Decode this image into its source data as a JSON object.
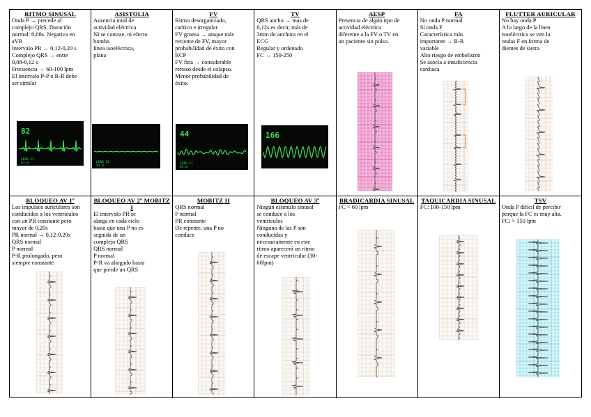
{
  "cells": [
    {
      "title": "RITMO SINUSAL",
      "lines": [
        "Onda P → precede al",
        "complejo QRS. Duración",
        "normal: 0,08s. Negativa en",
        "aVR",
        "Intervalo PR → 0,12-0,20 s",
        "Complejo QRS → entre",
        "0,08-0,12 s",
        "Frecuencia → 60-100 lpm",
        "El intervalo P-P o R-R debe",
        "ser similar"
      ],
      "monitor": {
        "rate": "82",
        "lead": "LEAD II",
        "gain": "X1.0",
        "pattern": "sinus"
      }
    },
    {
      "title": "ASISTOLIA",
      "lines": [
        "Ausencia total de",
        "actividad eléctrica",
        "Ni se contrae, ni efecto",
        "bomba",
        "línea isoeléctrica,",
        "plana"
      ],
      "monitor": {
        "rate": "",
        "lead": "LEAD II",
        "gain": "X1.0",
        "pattern": "flat"
      }
    },
    {
      "title": "FV",
      "lines": [
        "Ritmo desorganizado,",
        "caótico e irregular",
        "FV gruesa → ataque más",
        "reciente de FV, mayor",
        "probabilidad de éxito con",
        "RCP",
        "FV fina → considerable",
        "retraso desde el colapso.",
        "Menor probabilidad de",
        "éxito."
      ],
      "monitor": {
        "rate": "44",
        "lead": "LEAD II",
        "gain": "X1.0",
        "pattern": "vf"
      }
    },
    {
      "title": "TV",
      "lines": [
        "QRS ancho → mas de",
        "0,12s es decir, más de",
        "3mm de anchura en el",
        "ECG",
        "Regular y ordenado",
        "FC → 150-250"
      ],
      "monitor": {
        "rate": "166",
        "lead": "",
        "gain": "",
        "pattern": "vt"
      }
    },
    {
      "title": "AESP",
      "lines": [
        "Presencia de algún tipo de",
        "actividad eléctrica",
        "diferente a la FV o TV en",
        "un paciente sin pulso."
      ],
      "strip": {
        "style": "pink",
        "pattern": "aesp"
      }
    },
    {
      "title": "FA",
      "lines": [
        "No onda P normal",
        "Sí onda F",
        "Característica más",
        "importante → R-R",
        "variable",
        "Alto riesgo de embolismo",
        "Se asocia a insuficiencia",
        "cardiaca"
      ],
      "strip": {
        "style": "paper",
        "pattern": "af"
      }
    },
    {
      "title": "FLUTTER AURICULAR",
      "lines": [
        "No hay onda P",
        "A lo largo de la línea",
        "isoeléctrica se ven la",
        "ondas F en forma de",
        "dientes de sierra"
      ],
      "strip": {
        "style": "paper",
        "pattern": "flutter"
      }
    },
    {
      "title": "BLOQUEO AV 1º",
      "lines": [
        "Los impulsos auriculares son",
        "conducidos a los ventrículos",
        "con un PR constante pero",
        "mayor de 0,20s",
        "PR normal → 0,12-0,20s",
        "QRS normal",
        "P normal",
        "P-R prolongado, pero",
        "siempre constante"
      ],
      "strip": {
        "style": "paper",
        "pattern": "sinus"
      }
    },
    {
      "title": "BLOQUEO AV 2º MOBITZ I",
      "lines": [
        "El intervalo PR se",
        "alarga en cada ciclo",
        "hasta que una P no es",
        "seguida de un",
        "complejo QRS",
        "QRS normal",
        "P normal",
        "P-R va alargado hasta",
        "que pierde un QRS"
      ],
      "strip": {
        "style": "paper",
        "pattern": "sinus"
      }
    },
    {
      "title": "MOBITZ II",
      "lines": [
        "QRS normal",
        "P normal",
        "PR constante",
        "De repente, una P no",
        "conduce"
      ],
      "strip": {
        "style": "paper",
        "pattern": "sinus"
      }
    },
    {
      "title": "BLOQUEO AV 3º",
      "lines": [
        "Ningún estímulo sinusal",
        "se conduce a los",
        "ventrículos",
        "Ninguna de las P son",
        "conducidas y",
        "necesariamente en este",
        "ritmo aparecerá un ritmo",
        "de escape ventricular (30-",
        "60lpm)"
      ],
      "strip": {
        "style": "paper",
        "pattern": "block3"
      }
    },
    {
      "title": "BRADICARDIA SINUSAL",
      "lines": [
        "FC < 60 lpm"
      ],
      "strip": {
        "style": "paper",
        "pattern": "brady"
      }
    },
    {
      "title": "TAQUICARDIA SINUSAL",
      "lines": [
        "FC: 100-150 lpm"
      ],
      "strip": {
        "style": "paper",
        "pattern": "tachy"
      }
    },
    {
      "title": "TSV",
      "lines": [
        "Onda P difícil de percibir",
        "porque la FC es muy alta.",
        "FC: > 150 lpm"
      ],
      "strip": {
        "style": "cyan",
        "pattern": "svt"
      }
    }
  ],
  "colors": {
    "monitor_trace": "#38e05a",
    "monitor_bg": "#050805",
    "ecg_trace": "#505050",
    "pink_grid": "#d24aa0",
    "paper_grid": "#d6c9bd",
    "cyan_grid": "#71c9d3",
    "af_marker": "#e06a2a"
  }
}
